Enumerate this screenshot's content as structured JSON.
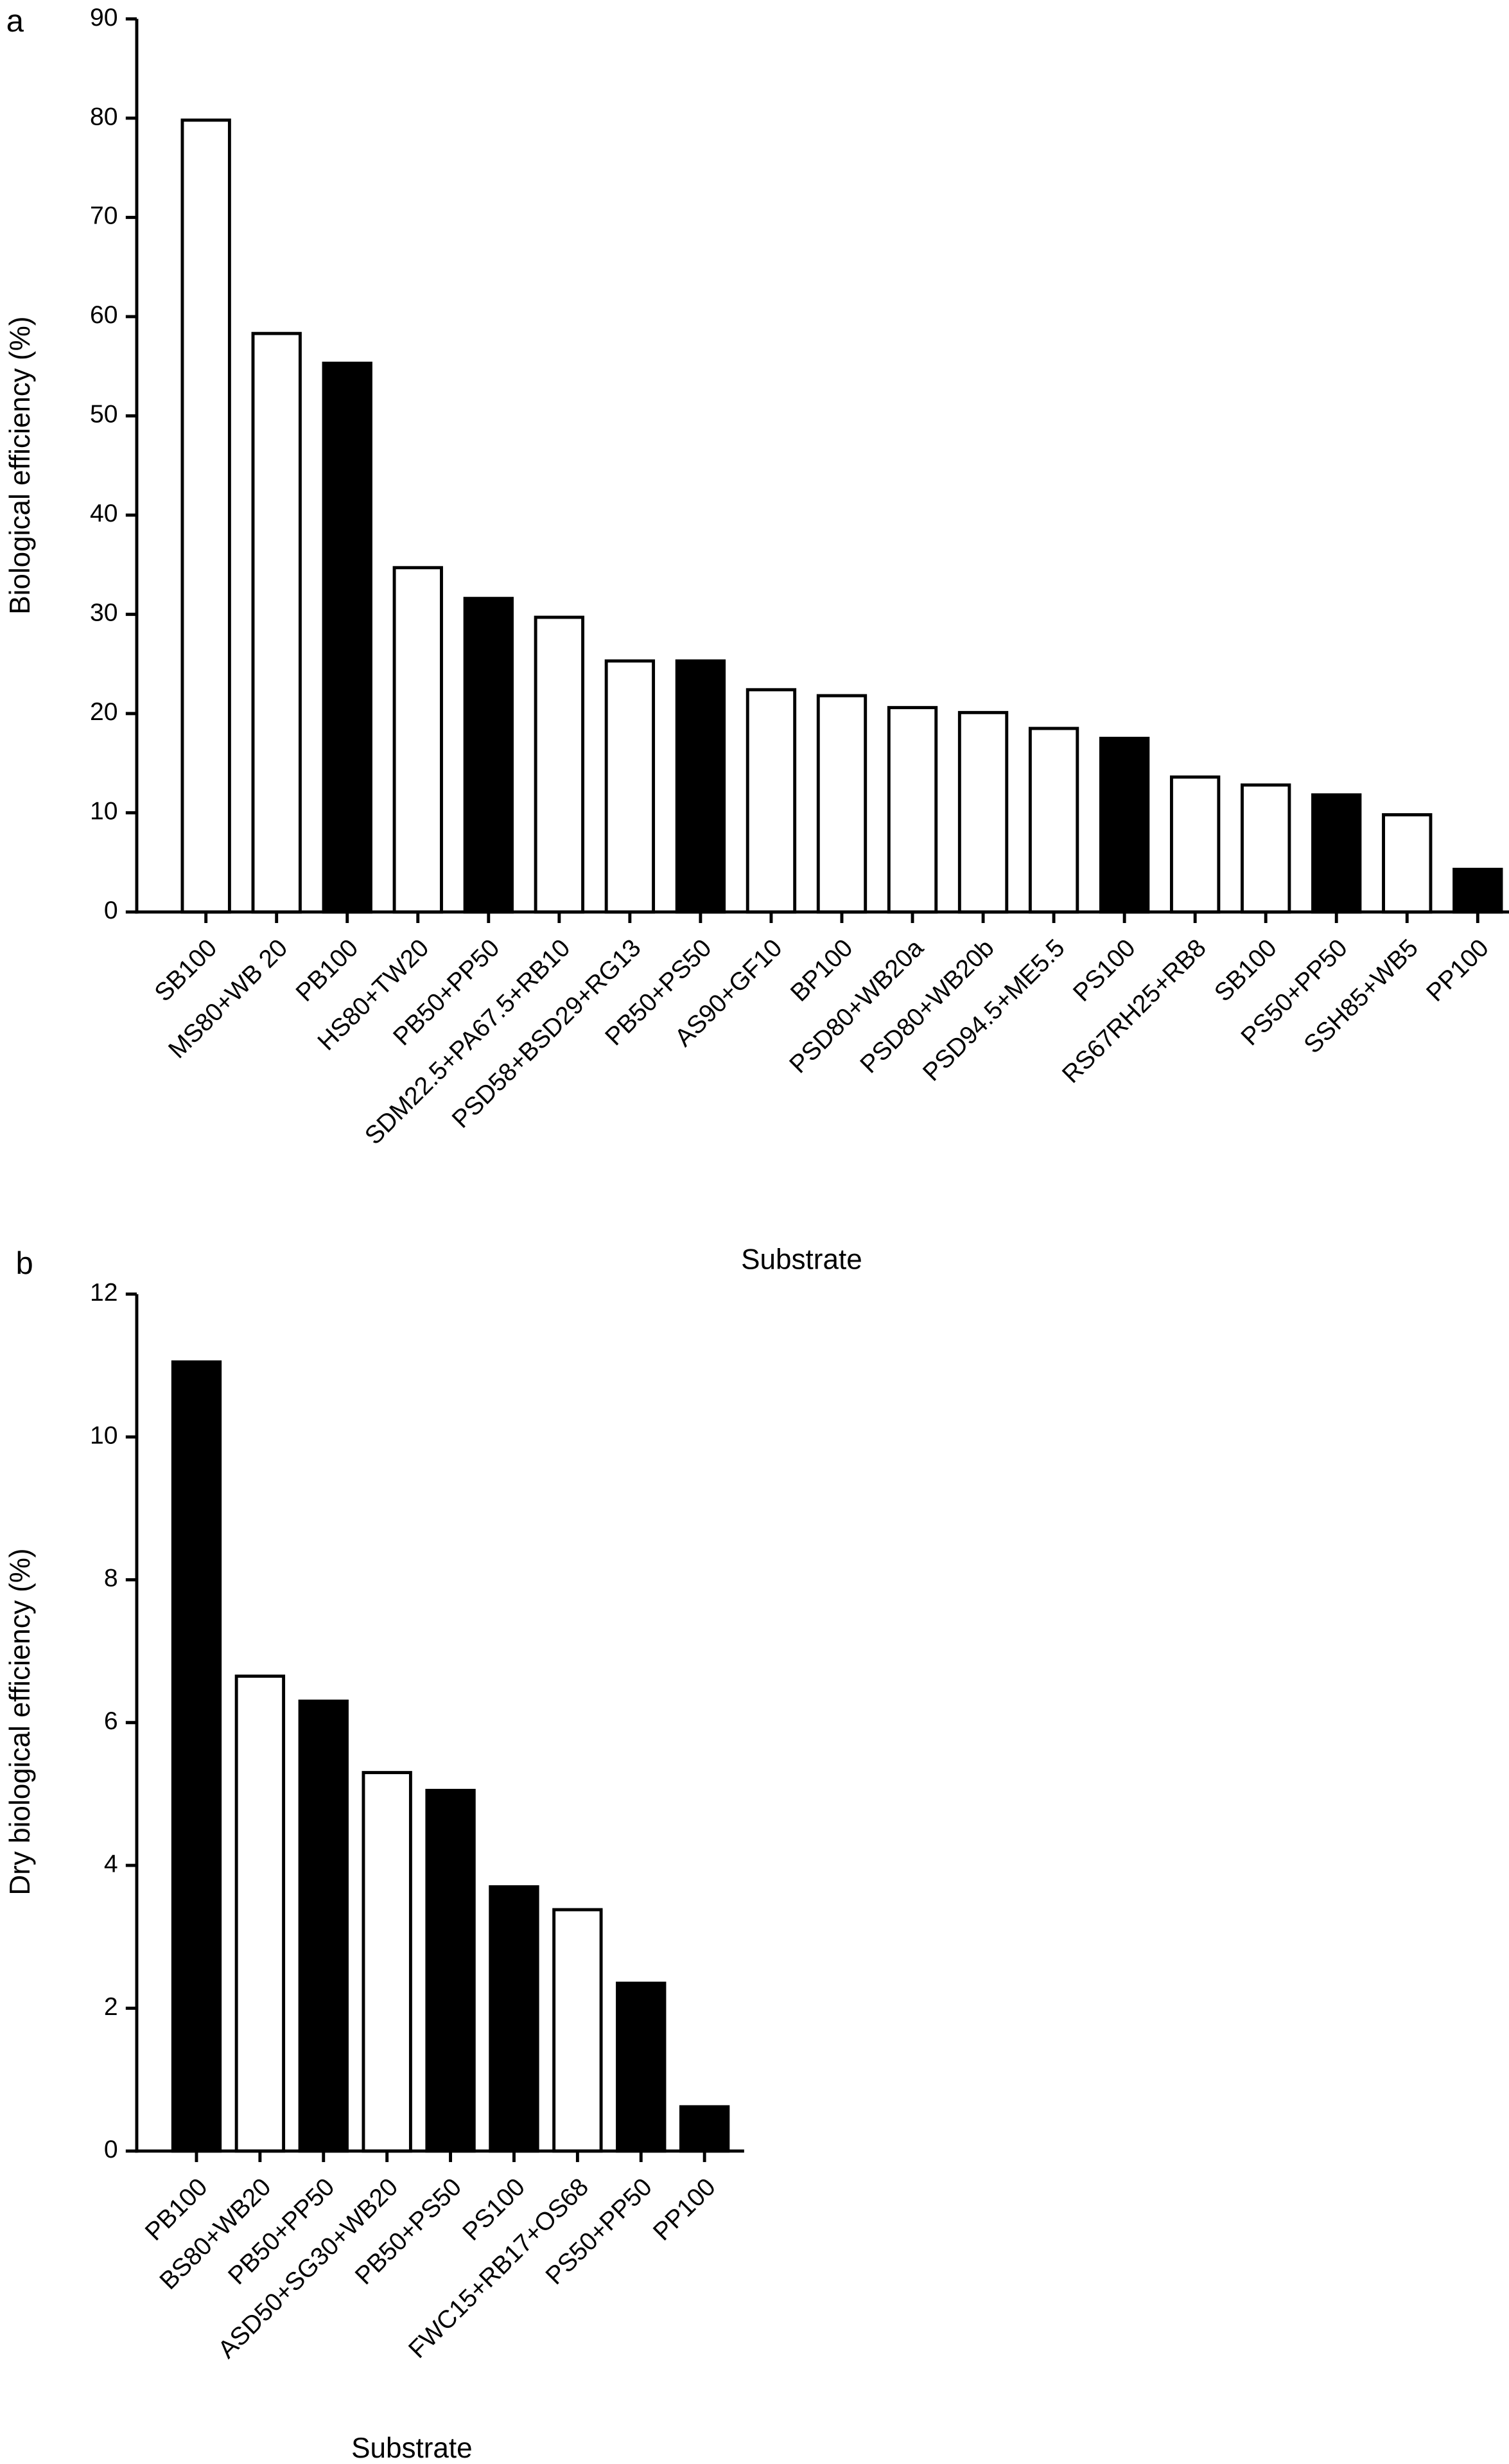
{
  "chart_data": [
    {
      "type": "bar",
      "panel_label": "a",
      "y_label": "Biological efficiency (%)",
      "x_label": "Substrate",
      "categories": [
        "SB100",
        "MS80+WB 20",
        "PB100",
        "HS80+TW20",
        "PB50+PP50",
        "SDM22.5+PA67.5+RB10",
        "PSD58+BSD29+RG13",
        "PB50+PS50",
        "AS90+GF10",
        "BP100",
        "PSD80+WB20a",
        "PSD80+WB20b",
        "PSD94.5+ME5.5",
        "PS100",
        "RS67RH25+RB8",
        "SB100",
        "PS50+PP50",
        "SSH85+WB5",
        "PP100"
      ],
      "values": [
        79.8,
        58.3,
        55.3,
        34.7,
        31.6,
        29.7,
        25.3,
        25.3,
        22.4,
        21.8,
        20.6,
        20.1,
        18.5,
        17.5,
        13.6,
        12.8,
        11.8,
        9.8,
        4.3
      ],
      "colors": [
        "#ffffff",
        "#ffffff",
        "#000000",
        "#ffffff",
        "#000000",
        "#ffffff",
        "#ffffff",
        "#000000",
        "#ffffff",
        "#ffffff",
        "#ffffff",
        "#ffffff",
        "#ffffff",
        "#000000",
        "#ffffff",
        "#ffffff",
        "#000000",
        "#ffffff",
        "#000000"
      ],
      "ylim": [
        0,
        90
      ],
      "yticks": [
        0,
        10,
        20,
        30,
        40,
        50,
        60,
        70,
        80,
        90
      ]
    },
    {
      "type": "bar",
      "panel_label": "b",
      "y_label": "Dry biological efficiency (%)",
      "x_label": "Substrate",
      "categories": [
        "PB100",
        "BS80+WB20",
        "PB50+PP50",
        "ASD50+SG30+WB20",
        "PB50+PS50",
        "PS100",
        "FWC15+RB17+OS68",
        "PS50+PP50",
        "PP100"
      ],
      "values": [
        11.05,
        6.65,
        6.3,
        5.3,
        5.05,
        3.7,
        3.38,
        2.35,
        0.62
      ],
      "colors": [
        "#000000",
        "#ffffff",
        "#000000",
        "#ffffff",
        "#000000",
        "#000000",
        "#ffffff",
        "#000000",
        "#000000"
      ],
      "ylim": [
        0,
        12
      ],
      "yticks": [
        0,
        2,
        4,
        6,
        8,
        10,
        12
      ]
    }
  ]
}
